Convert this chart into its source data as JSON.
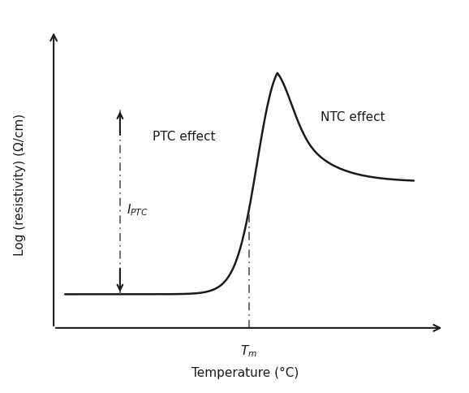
{
  "xlabel": "Temperature (°C)",
  "ylabel": "Log (resistivity) (Ω/cm)",
  "background_color": "#ffffff",
  "curve_color": "#1a1a1a",
  "line_color": "#555555",
  "arrow_color": "#1a1a1a",
  "ptc_label": "PTC effect",
  "ntc_label": "NTC effect",
  "font_size_labels": 11,
  "font_size_annotations": 11
}
